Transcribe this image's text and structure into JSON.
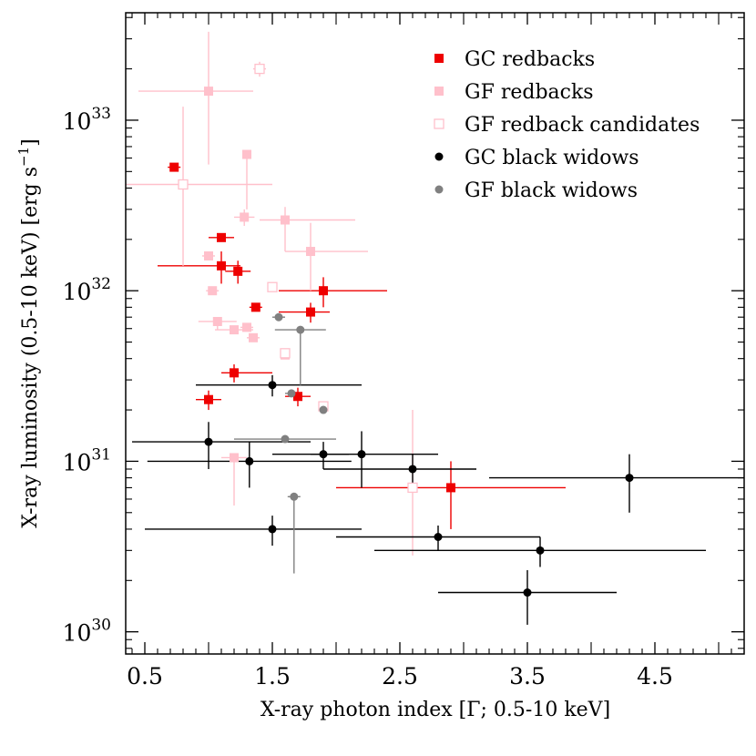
{
  "chart_data": {
    "type": "scatter",
    "xlabel": "X-ray photon index [Γ; 0.5-10 keV]",
    "ylabel": "X-ray luminosity (0.5-10 keV) [erg s",
    "ylabel_sup": "−1",
    "ylabel_close": "]",
    "xlim": [
      0.35,
      5.2
    ],
    "ylim_log10": [
      29.87,
      33.63
    ],
    "y_scale": "log",
    "xticks": [
      {
        "value": 0.5,
        "label": "0.5"
      },
      {
        "value": 1.5,
        "label": "1.5"
      },
      {
        "value": 2.5,
        "label": "2.5"
      },
      {
        "value": 3.5,
        "label": "3.5"
      },
      {
        "value": 4.5,
        "label": "4.5"
      }
    ],
    "yticks": [
      {
        "exp": 30,
        "base": "10",
        "sup": "30"
      },
      {
        "exp": 31,
        "base": "10",
        "sup": "31"
      },
      {
        "exp": 32,
        "base": "10",
        "sup": "32"
      },
      {
        "exp": 33,
        "base": "10",
        "sup": "33"
      }
    ],
    "legend_position": "top-right",
    "series": [
      {
        "name": "GC redbacks",
        "color": "#ee0000",
        "marker": "square",
        "filled": true,
        "points": [
          {
            "x": 0.73,
            "y": 5.3e+32,
            "xerr": [
              0.05,
              0.05
            ],
            "yerr": [
              0,
              0
            ]
          },
          {
            "x": 1.1,
            "y": 2.05e+32,
            "xerr": [
              0.1,
              0.1
            ],
            "yerr": [
              0,
              0
            ]
          },
          {
            "x": 1.1,
            "y": 1.4e+32,
            "xerr": [
              0.5,
              0.15
            ],
            "yerr": [
              3e+31,
              3e+31
            ]
          },
          {
            "x": 1.23,
            "y": 1.3e+32,
            "xerr": [
              0.1,
              0.1
            ],
            "yerr": [
              2e+31,
              2e+31
            ]
          },
          {
            "x": 1.37,
            "y": 8e+31,
            "xerr": [
              0.05,
              0.05
            ],
            "yerr": [
              0,
              0
            ]
          },
          {
            "x": 1.9,
            "y": 1e+32,
            "xerr": [
              0.35,
              0.5
            ],
            "yerr": [
              2e+31,
              2e+31
            ]
          },
          {
            "x": 1.8,
            "y": 7.5e+31,
            "xerr": [
              0.25,
              0.15
            ],
            "yerr": [
              1e+31,
              1e+31
            ]
          },
          {
            "x": 1.2,
            "y": 3.3e+31,
            "xerr": [
              0.1,
              0.3
            ],
            "yerr": [
              4e+30,
              4e+30
            ]
          },
          {
            "x": 1.0,
            "y": 2.3e+31,
            "xerr": [
              0.1,
              0.1
            ],
            "yerr": [
              3e+30,
              3e+30
            ]
          },
          {
            "x": 1.7,
            "y": 2.4e+31,
            "xerr": [
              0.1,
              0.1
            ],
            "yerr": [
              3e+30,
              3e+30
            ]
          },
          {
            "x": 2.9,
            "y": 7e+30,
            "xerr": [
              0.9,
              0.9
            ],
            "yerr": [
              3e+30,
              3e+30
            ]
          }
        ]
      },
      {
        "name": "GF redbacks",
        "color": "#ffc0cb",
        "marker": "square",
        "filled": true,
        "points": [
          {
            "x": 1.0,
            "y": 1.48e+33,
            "xerr": [
              0.55,
              0.35
            ],
            "yerr": [
              9.3e+32,
              1.82e+33
            ]
          },
          {
            "x": 1.3,
            "y": 6.3e+32,
            "xerr": [
              0.03,
              0.03
            ],
            "yerr": [
              3.3e+32,
              0
            ]
          },
          {
            "x": 1.28,
            "y": 2.7e+32,
            "xerr": [
              0.08,
              0.08
            ],
            "yerr": [
              3e+31,
              3e+31
            ]
          },
          {
            "x": 1.6,
            "y": 2.6e+32,
            "xerr": [
              0.2,
              0.55
            ],
            "yerr": [
              9e+31,
              5e+31
            ]
          },
          {
            "x": 1.0,
            "y": 1.6e+32,
            "xerr": [
              0.05,
              0.05
            ],
            "yerr": [
              0,
              0
            ]
          },
          {
            "x": 1.8,
            "y": 1.7e+32,
            "xerr": [
              0.2,
              0.45
            ],
            "yerr": [
              7e+31,
              8e+31
            ]
          },
          {
            "x": 1.03,
            "y": 1e+32,
            "xerr": [
              0.05,
              0.05
            ],
            "yerr": [
              0,
              0
            ]
          },
          {
            "x": 1.07,
            "y": 6.6e+31,
            "xerr": [
              0.15,
              0.15
            ],
            "yerr": [
              7e+30,
              0
            ]
          },
          {
            "x": 1.2,
            "y": 5.9e+31,
            "xerr": [
              0.15,
              0.15
            ],
            "yerr": [
              0,
              0
            ]
          },
          {
            "x": 1.3,
            "y": 6.1e+31,
            "xerr": [
              0.05,
              0.05
            ],
            "yerr": [
              0,
              0
            ]
          },
          {
            "x": 1.35,
            "y": 5.3e+31,
            "xerr": [
              0.05,
              0.05
            ],
            "yerr": [
              0,
              0
            ]
          },
          {
            "x": 1.6,
            "y": 4.2e+31,
            "xerr": [
              0.02,
              0.02
            ],
            "yerr": [
              0,
              0
            ]
          },
          {
            "x": 1.2,
            "y": 1.05e+31,
            "xerr": [
              0.1,
              0.1
            ],
            "yerr": [
              5e+30,
              0
            ]
          }
        ]
      },
      {
        "name": "GF redback candidates",
        "color": "#ffc0cb",
        "marker": "square",
        "filled": false,
        "points": [
          {
            "x": 1.4,
            "y": 2e+33,
            "xerr": [
              0.05,
              0.05
            ],
            "yerr": [
              2e+32,
              2e+32
            ]
          },
          {
            "x": 0.8,
            "y": 4.2e+32,
            "xerr": [
              0.45,
              0.7
            ],
            "yerr": [
              2.8e+32,
              7.8e+32
            ]
          },
          {
            "x": 1.5,
            "y": 1.05e+32,
            "xerr": [
              0.03,
              0.03
            ],
            "yerr": [
              0,
              0
            ]
          },
          {
            "x": 1.6,
            "y": 4.3e+31,
            "xerr": [
              0.02,
              0.02
            ],
            "yerr": [
              0,
              0
            ]
          },
          {
            "x": 1.9,
            "y": 2.1e+31,
            "xerr": [
              0.03,
              0.03
            ],
            "yerr": [
              0,
              0
            ]
          },
          {
            "x": 2.6,
            "y": 7e+30,
            "xerr": [
              0.02,
              0.02
            ],
            "yerr": [
              4.2e+30,
              1.3e+31
            ]
          }
        ]
      },
      {
        "name": "GC black widows",
        "color": "#000000",
        "marker": "circle",
        "filled": true,
        "points": [
          {
            "x": 1.5,
            "y": 2.8e+31,
            "xerr": [
              0.6,
              0.7
            ],
            "yerr": [
              4e+30,
              4e+30
            ]
          },
          {
            "x": 1.0,
            "y": 1.3e+31,
            "xerr": [
              0.6,
              0.8
            ],
            "yerr": [
              4e+30,
              4e+30
            ]
          },
          {
            "x": 1.9,
            "y": 1.1e+31,
            "xerr": [
              0.4,
              0.2
            ],
            "yerr": [
              2e+30,
              2e+30
            ]
          },
          {
            "x": 2.2,
            "y": 1.1e+31,
            "xerr": [
              0.4,
              0.6
            ],
            "yerr": [
              4e+30,
              4e+30
            ]
          },
          {
            "x": 1.32,
            "y": 1e+31,
            "xerr": [
              0.8,
              0.8
            ],
            "yerr": [
              3e+30,
              3e+30
            ]
          },
          {
            "x": 2.6,
            "y": 9e+30,
            "xerr": [
              0.7,
              0.5
            ],
            "yerr": [
              2e+30,
              2e+30
            ]
          },
          {
            "x": 4.3,
            "y": 8e+30,
            "xerr": [
              1.1,
              0.9
            ],
            "yerr": [
              3e+30,
              3e+30
            ]
          },
          {
            "x": 1.5,
            "y": 4e+30,
            "xerr": [
              1.0,
              0.7
            ],
            "yerr": [
              8e+29,
              8e+29
            ]
          },
          {
            "x": 2.8,
            "y": 3.6e+30,
            "xerr": [
              0.8,
              0.8
            ],
            "yerr": [
              6e+29,
              6e+29
            ]
          },
          {
            "x": 3.6,
            "y": 3e+30,
            "xerr": [
              1.3,
              1.3
            ],
            "yerr": [
              6e+29,
              6e+29
            ]
          },
          {
            "x": 3.5,
            "y": 1.7e+30,
            "xerr": [
              0.7,
              0.7
            ],
            "yerr": [
              6e+29,
              6e+29
            ]
          }
        ]
      },
      {
        "name": "GF black widows",
        "color": "#808080",
        "marker": "circle",
        "filled": true,
        "points": [
          {
            "x": 1.55,
            "y": 7e+31,
            "xerr": [
              0.05,
              0.05
            ],
            "yerr": [
              0,
              0
            ]
          },
          {
            "x": 1.72,
            "y": 5.9e+31,
            "xerr": [
              0.2,
              0.2
            ],
            "yerr": [
              3.1e+31,
              0
            ]
          },
          {
            "x": 1.65,
            "y": 2.5e+31,
            "xerr": [
              0.05,
              0.05
            ],
            "yerr": [
              0,
              0
            ]
          },
          {
            "x": 1.9,
            "y": 2e+31,
            "xerr": [
              0.02,
              0.02
            ],
            "yerr": [
              0,
              0
            ]
          },
          {
            "x": 1.6,
            "y": 1.35e+31,
            "xerr": [
              0.4,
              0.4
            ],
            "yerr": [
              0,
              0
            ]
          },
          {
            "x": 1.67,
            "y": 6.2e+30,
            "xerr": [
              0.05,
              0.05
            ],
            "yerr": [
              4e+30,
              0
            ]
          }
        ]
      }
    ]
  }
}
